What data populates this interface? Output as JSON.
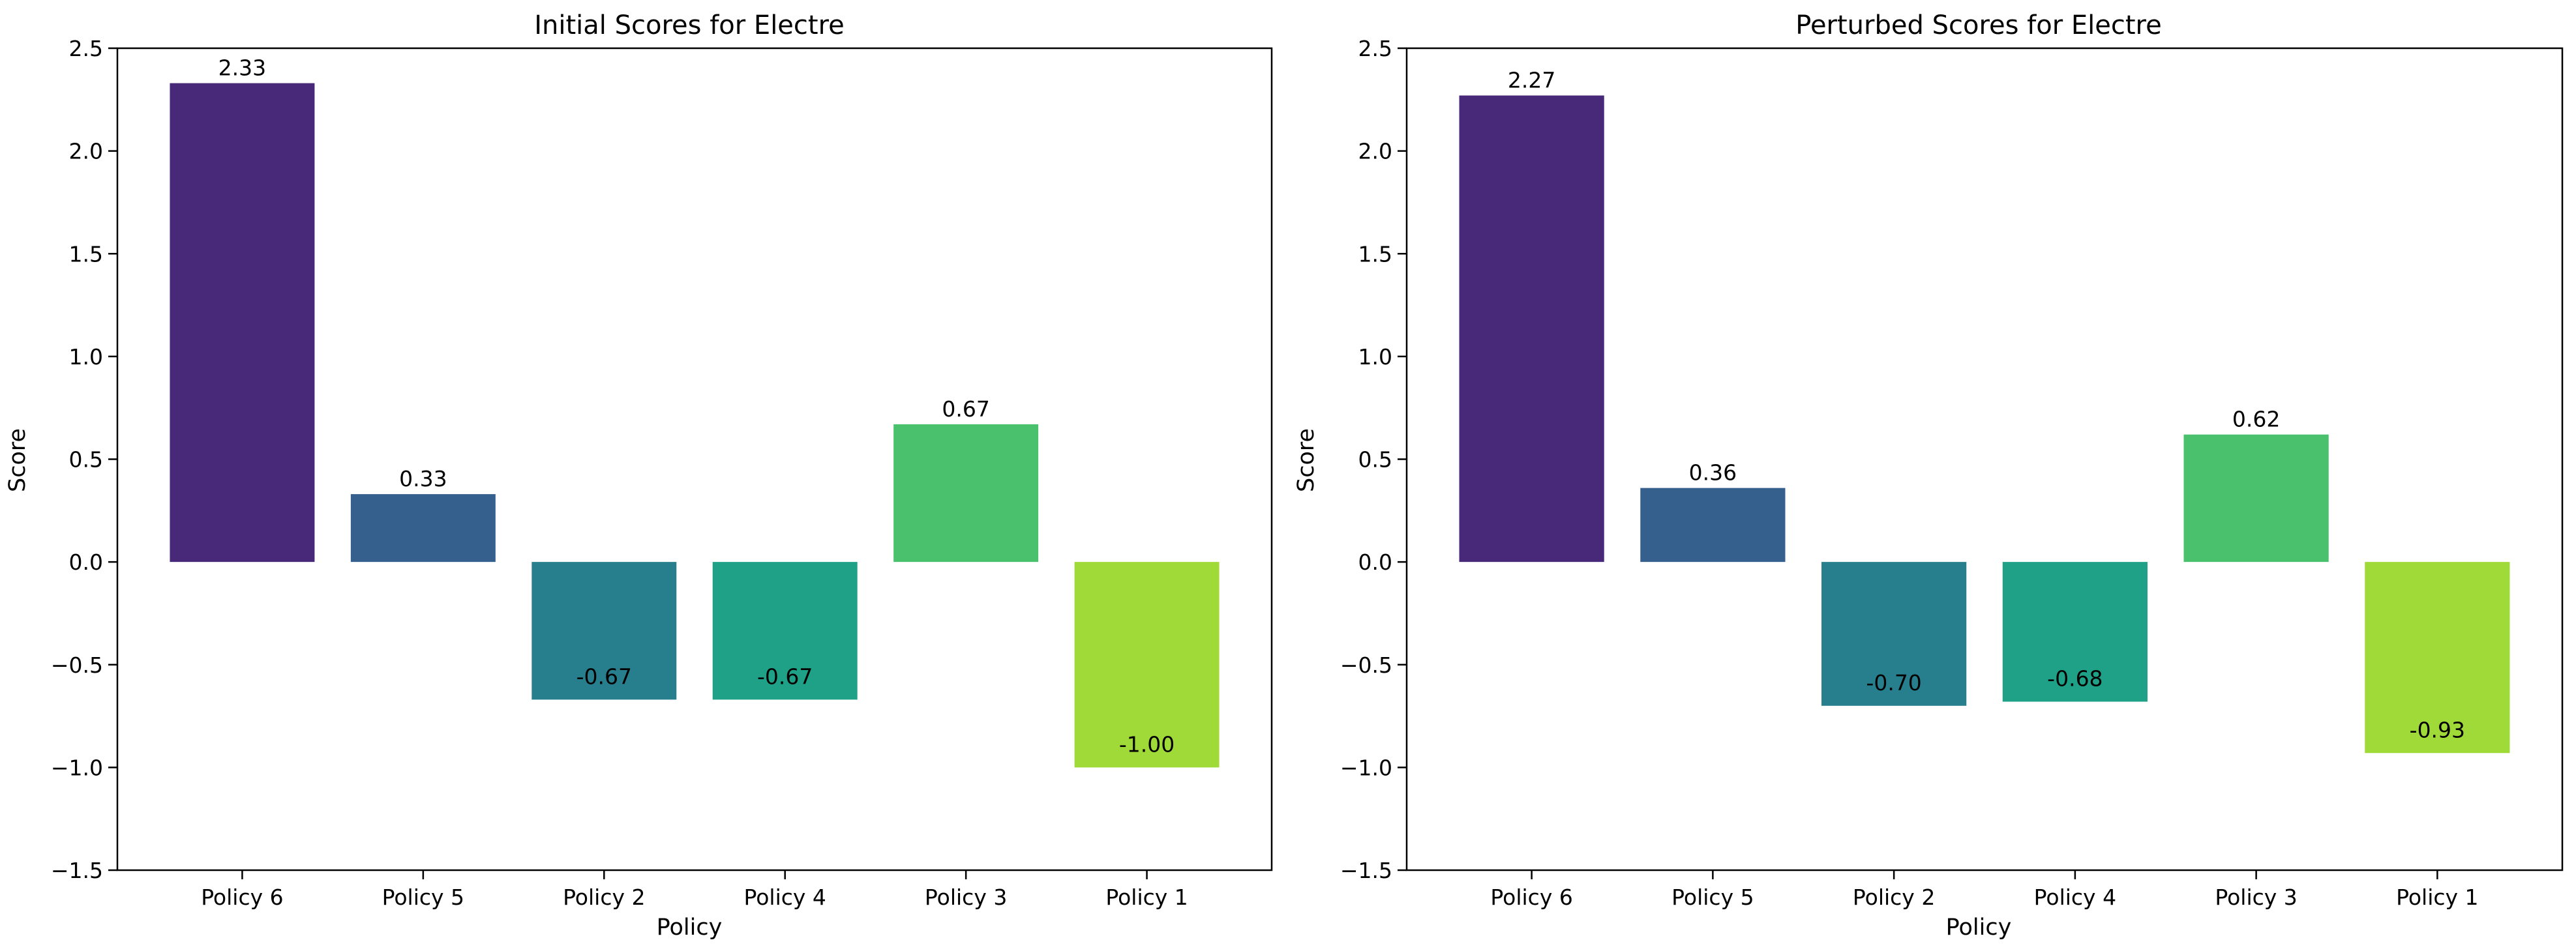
{
  "chart_data": [
    {
      "type": "bar",
      "title": "Initial Scores for Electre",
      "xlabel": "Policy",
      "ylabel": "Score",
      "ylim": [
        -1.5,
        2.5
      ],
      "yticks": [
        -1.5,
        -1.0,
        -0.5,
        0.0,
        0.5,
        1.0,
        1.5,
        2.0,
        2.5
      ],
      "ytick_labels": [
        "−1.5",
        "−1.0",
        "−0.5",
        "0.0",
        "0.5",
        "1.0",
        "1.5",
        "2.0",
        "2.5"
      ],
      "categories": [
        "Policy 6",
        "Policy 5",
        "Policy 2",
        "Policy 4",
        "Policy 3",
        "Policy 1"
      ],
      "values": [
        2.33,
        0.33,
        -0.67,
        -0.67,
        0.67,
        -1.0
      ],
      "value_labels": [
        "2.33",
        "0.33",
        "-0.67",
        "-0.67",
        "0.67",
        "-1.00"
      ],
      "colors": [
        "#482878",
        "#355f8d",
        "#277f8e",
        "#1fa187",
        "#4ac16d",
        "#a0da39"
      ]
    },
    {
      "type": "bar",
      "title": "Perturbed Scores for Electre",
      "xlabel": "Policy",
      "ylabel": "Score",
      "ylim": [
        -1.5,
        2.5
      ],
      "yticks": [
        -1.5,
        -1.0,
        -0.5,
        0.0,
        0.5,
        1.0,
        1.5,
        2.0,
        2.5
      ],
      "ytick_labels": [
        "−1.5",
        "−1.0",
        "−0.5",
        "0.0",
        "0.5",
        "1.0",
        "1.5",
        "2.0",
        "2.5"
      ],
      "categories": [
        "Policy 6",
        "Policy 5",
        "Policy 2",
        "Policy 4",
        "Policy 3",
        "Policy 1"
      ],
      "values": [
        2.27,
        0.36,
        -0.7,
        -0.68,
        0.62,
        -0.93
      ],
      "value_labels": [
        "2.27",
        "0.36",
        "-0.70",
        "-0.68",
        "0.62",
        "-0.93"
      ],
      "colors": [
        "#482878",
        "#355f8d",
        "#277f8e",
        "#1fa187",
        "#4ac16d",
        "#a0da39"
      ]
    }
  ]
}
